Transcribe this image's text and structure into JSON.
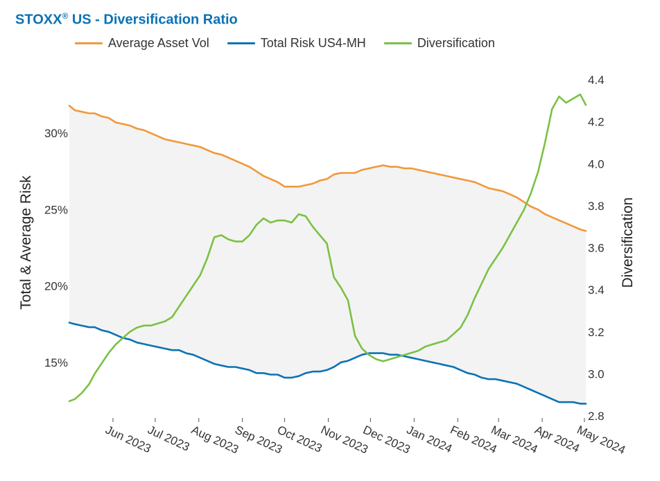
{
  "title": {
    "brand": "STOXX",
    "reg": "®",
    "rest": " US - Diversification Ratio"
  },
  "chart_data": {
    "type": "line",
    "title": "STOXX® US - Diversification Ratio",
    "legend_position": "top",
    "grid": false,
    "shaded_band_between": [
      "Average Asset Vol",
      "Total Risk US4-MH"
    ],
    "band_color": "#f3f3f3",
    "x_axis": {
      "type": "date",
      "range": [
        "2023-05-01",
        "2024-05-02"
      ],
      "ticks": [
        {
          "date": "2023-06-01",
          "label": "Jun 2023"
        },
        {
          "date": "2023-07-01",
          "label": "Jul 2023"
        },
        {
          "date": "2023-08-01",
          "label": "Aug 2023"
        },
        {
          "date": "2023-09-01",
          "label": "Sep 2023"
        },
        {
          "date": "2023-10-01",
          "label": "Oct 2023"
        },
        {
          "date": "2023-11-01",
          "label": "Nov 2023"
        },
        {
          "date": "2023-12-01",
          "label": "Dec 2023"
        },
        {
          "date": "2024-01-01",
          "label": "Jan 2024"
        },
        {
          "date": "2024-02-01",
          "label": "Feb 2024"
        },
        {
          "date": "2024-03-01",
          "label": "Mar 2024"
        },
        {
          "date": "2024-04-01",
          "label": "Apr 2024"
        },
        {
          "date": "2024-05-01",
          "label": "May 2024"
        }
      ]
    },
    "y_left": {
      "label": "Total & Average Risk",
      "range": [
        11.5,
        33.5
      ],
      "ticks": [
        {
          "value": 15,
          "label": "15%"
        },
        {
          "value": 20,
          "label": "20%"
        },
        {
          "value": 25,
          "label": "25%"
        },
        {
          "value": 30,
          "label": "30%"
        }
      ]
    },
    "y_right": {
      "label": "Diversification",
      "range": [
        2.8,
        4.4
      ],
      "ticks": [
        {
          "value": 2.8,
          "label": "2.8"
        },
        {
          "value": 3.0,
          "label": "3.0"
        },
        {
          "value": 3.2,
          "label": "3.2"
        },
        {
          "value": 3.4,
          "label": "3.4"
        },
        {
          "value": 3.6,
          "label": "3.6"
        },
        {
          "value": 3.8,
          "label": "3.8"
        },
        {
          "value": 4.0,
          "label": "4.0"
        },
        {
          "value": 4.2,
          "label": "4.2"
        },
        {
          "value": 4.4,
          "label": "4.4"
        }
      ]
    },
    "series": [
      {
        "name": "Average Asset Vol",
        "axis": "left",
        "color": "#f0993a",
        "points": [
          [
            "2023-05-01",
            31.8
          ],
          [
            "2023-05-05",
            31.5
          ],
          [
            "2023-05-10",
            31.4
          ],
          [
            "2023-05-15",
            31.3
          ],
          [
            "2023-05-19",
            31.3
          ],
          [
            "2023-05-24",
            31.1
          ],
          [
            "2023-05-29",
            31.0
          ],
          [
            "2023-06-03",
            30.7
          ],
          [
            "2023-06-08",
            30.6
          ],
          [
            "2023-06-13",
            30.5
          ],
          [
            "2023-06-18",
            30.3
          ],
          [
            "2023-06-23",
            30.2
          ],
          [
            "2023-06-28",
            30.0
          ],
          [
            "2023-07-03",
            29.8
          ],
          [
            "2023-07-08",
            29.6
          ],
          [
            "2023-07-13",
            29.5
          ],
          [
            "2023-07-18",
            29.4
          ],
          [
            "2023-07-23",
            29.3
          ],
          [
            "2023-07-28",
            29.2
          ],
          [
            "2023-08-02",
            29.1
          ],
          [
            "2023-08-07",
            28.9
          ],
          [
            "2023-08-12",
            28.7
          ],
          [
            "2023-08-17",
            28.6
          ],
          [
            "2023-08-22",
            28.4
          ],
          [
            "2023-08-27",
            28.2
          ],
          [
            "2023-09-01",
            28.0
          ],
          [
            "2023-09-06",
            27.8
          ],
          [
            "2023-09-11",
            27.5
          ],
          [
            "2023-09-16",
            27.2
          ],
          [
            "2023-09-21",
            27.0
          ],
          [
            "2023-09-26",
            26.8
          ],
          [
            "2023-10-01",
            26.5
          ],
          [
            "2023-10-06",
            26.5
          ],
          [
            "2023-10-11",
            26.5
          ],
          [
            "2023-10-16",
            26.6
          ],
          [
            "2023-10-21",
            26.7
          ],
          [
            "2023-10-26",
            26.9
          ],
          [
            "2023-10-31",
            27.0
          ],
          [
            "2023-11-05",
            27.3
          ],
          [
            "2023-11-10",
            27.4
          ],
          [
            "2023-11-15",
            27.4
          ],
          [
            "2023-11-20",
            27.4
          ],
          [
            "2023-11-25",
            27.6
          ],
          [
            "2023-11-30",
            27.7
          ],
          [
            "2023-12-05",
            27.8
          ],
          [
            "2023-12-10",
            27.9
          ],
          [
            "2023-12-15",
            27.8
          ],
          [
            "2023-12-20",
            27.8
          ],
          [
            "2023-12-25",
            27.7
          ],
          [
            "2023-12-30",
            27.7
          ],
          [
            "2024-01-04",
            27.6
          ],
          [
            "2024-01-09",
            27.5
          ],
          [
            "2024-01-14",
            27.4
          ],
          [
            "2024-01-19",
            27.3
          ],
          [
            "2024-01-24",
            27.2
          ],
          [
            "2024-01-29",
            27.1
          ],
          [
            "2024-02-03",
            27.0
          ],
          [
            "2024-02-08",
            26.9
          ],
          [
            "2024-02-13",
            26.8
          ],
          [
            "2024-02-18",
            26.6
          ],
          [
            "2024-02-23",
            26.4
          ],
          [
            "2024-02-28",
            26.3
          ],
          [
            "2024-03-04",
            26.2
          ],
          [
            "2024-03-09",
            26.0
          ],
          [
            "2024-03-14",
            25.8
          ],
          [
            "2024-03-19",
            25.5
          ],
          [
            "2024-03-24",
            25.2
          ],
          [
            "2024-03-29",
            25.0
          ],
          [
            "2024-04-03",
            24.7
          ],
          [
            "2024-04-08",
            24.5
          ],
          [
            "2024-04-13",
            24.3
          ],
          [
            "2024-04-18",
            24.1
          ],
          [
            "2024-04-23",
            23.9
          ],
          [
            "2024-04-28",
            23.7
          ],
          [
            "2024-05-02",
            23.6
          ]
        ]
      },
      {
        "name": "Total Risk US4-MH",
        "axis": "left",
        "color": "#0b72b5",
        "points": [
          [
            "2023-05-01",
            17.6
          ],
          [
            "2023-05-05",
            17.5
          ],
          [
            "2023-05-10",
            17.4
          ],
          [
            "2023-05-15",
            17.3
          ],
          [
            "2023-05-19",
            17.3
          ],
          [
            "2023-05-24",
            17.1
          ],
          [
            "2023-05-29",
            17.0
          ],
          [
            "2023-06-03",
            16.8
          ],
          [
            "2023-06-08",
            16.6
          ],
          [
            "2023-06-13",
            16.5
          ],
          [
            "2023-06-18",
            16.3
          ],
          [
            "2023-06-23",
            16.2
          ],
          [
            "2023-06-28",
            16.1
          ],
          [
            "2023-07-03",
            16.0
          ],
          [
            "2023-07-08",
            15.9
          ],
          [
            "2023-07-13",
            15.8
          ],
          [
            "2023-07-18",
            15.8
          ],
          [
            "2023-07-23",
            15.6
          ],
          [
            "2023-07-28",
            15.5
          ],
          [
            "2023-08-02",
            15.3
          ],
          [
            "2023-08-07",
            15.1
          ],
          [
            "2023-08-12",
            14.9
          ],
          [
            "2023-08-17",
            14.8
          ],
          [
            "2023-08-22",
            14.7
          ],
          [
            "2023-08-27",
            14.7
          ],
          [
            "2023-09-01",
            14.6
          ],
          [
            "2023-09-06",
            14.5
          ],
          [
            "2023-09-11",
            14.3
          ],
          [
            "2023-09-16",
            14.3
          ],
          [
            "2023-09-21",
            14.2
          ],
          [
            "2023-09-26",
            14.2
          ],
          [
            "2023-10-01",
            14.0
          ],
          [
            "2023-10-06",
            14.0
          ],
          [
            "2023-10-11",
            14.1
          ],
          [
            "2023-10-16",
            14.3
          ],
          [
            "2023-10-21",
            14.4
          ],
          [
            "2023-10-26",
            14.4
          ],
          [
            "2023-10-31",
            14.5
          ],
          [
            "2023-11-05",
            14.7
          ],
          [
            "2023-11-10",
            15.0
          ],
          [
            "2023-11-15",
            15.1
          ],
          [
            "2023-11-20",
            15.3
          ],
          [
            "2023-11-25",
            15.5
          ],
          [
            "2023-11-30",
            15.6
          ],
          [
            "2023-12-05",
            15.6
          ],
          [
            "2023-12-10",
            15.6
          ],
          [
            "2023-12-15",
            15.5
          ],
          [
            "2023-12-20",
            15.5
          ],
          [
            "2023-12-25",
            15.4
          ],
          [
            "2023-12-30",
            15.3
          ],
          [
            "2024-01-04",
            15.2
          ],
          [
            "2024-01-09",
            15.1
          ],
          [
            "2024-01-14",
            15.0
          ],
          [
            "2024-01-19",
            14.9
          ],
          [
            "2024-01-24",
            14.8
          ],
          [
            "2024-01-29",
            14.7
          ],
          [
            "2024-02-03",
            14.5
          ],
          [
            "2024-02-08",
            14.3
          ],
          [
            "2024-02-13",
            14.2
          ],
          [
            "2024-02-18",
            14.0
          ],
          [
            "2024-02-23",
            13.9
          ],
          [
            "2024-02-28",
            13.9
          ],
          [
            "2024-03-04",
            13.8
          ],
          [
            "2024-03-09",
            13.7
          ],
          [
            "2024-03-14",
            13.6
          ],
          [
            "2024-03-19",
            13.4
          ],
          [
            "2024-03-24",
            13.2
          ],
          [
            "2024-03-29",
            13.0
          ],
          [
            "2024-04-03",
            12.8
          ],
          [
            "2024-04-08",
            12.6
          ],
          [
            "2024-04-13",
            12.4
          ],
          [
            "2024-04-18",
            12.4
          ],
          [
            "2024-04-23",
            12.4
          ],
          [
            "2024-04-28",
            12.3
          ],
          [
            "2024-05-02",
            12.3
          ]
        ]
      },
      {
        "name": "Diversification",
        "axis": "right",
        "color": "#7ac143",
        "points": [
          [
            "2023-05-01",
            2.87
          ],
          [
            "2023-05-05",
            2.88
          ],
          [
            "2023-05-10",
            2.91
          ],
          [
            "2023-05-15",
            2.95
          ],
          [
            "2023-05-19",
            3.0
          ],
          [
            "2023-05-24",
            3.05
          ],
          [
            "2023-05-29",
            3.1
          ],
          [
            "2023-06-03",
            3.14
          ],
          [
            "2023-06-08",
            3.17
          ],
          [
            "2023-06-13",
            3.2
          ],
          [
            "2023-06-18",
            3.22
          ],
          [
            "2023-06-23",
            3.23
          ],
          [
            "2023-06-28",
            3.23
          ],
          [
            "2023-07-03",
            3.24
          ],
          [
            "2023-07-08",
            3.25
          ],
          [
            "2023-07-13",
            3.27
          ],
          [
            "2023-07-18",
            3.32
          ],
          [
            "2023-07-23",
            3.37
          ],
          [
            "2023-07-28",
            3.42
          ],
          [
            "2023-08-02",
            3.47
          ],
          [
            "2023-08-07",
            3.55
          ],
          [
            "2023-08-12",
            3.65
          ],
          [
            "2023-08-17",
            3.66
          ],
          [
            "2023-08-22",
            3.64
          ],
          [
            "2023-08-27",
            3.63
          ],
          [
            "2023-09-01",
            3.63
          ],
          [
            "2023-09-06",
            3.66
          ],
          [
            "2023-09-11",
            3.71
          ],
          [
            "2023-09-16",
            3.74
          ],
          [
            "2023-09-21",
            3.72
          ],
          [
            "2023-09-26",
            3.73
          ],
          [
            "2023-10-01",
            3.73
          ],
          [
            "2023-10-06",
            3.72
          ],
          [
            "2023-10-11",
            3.76
          ],
          [
            "2023-10-16",
            3.75
          ],
          [
            "2023-10-21",
            3.7
          ],
          [
            "2023-10-26",
            3.66
          ],
          [
            "2023-10-31",
            3.62
          ],
          [
            "2023-11-05",
            3.46
          ],
          [
            "2023-11-10",
            3.41
          ],
          [
            "2023-11-15",
            3.35
          ],
          [
            "2023-11-20",
            3.18
          ],
          [
            "2023-11-25",
            3.12
          ],
          [
            "2023-11-30",
            3.09
          ],
          [
            "2023-12-05",
            3.07
          ],
          [
            "2023-12-10",
            3.06
          ],
          [
            "2023-12-15",
            3.07
          ],
          [
            "2023-12-20",
            3.08
          ],
          [
            "2023-12-25",
            3.09
          ],
          [
            "2023-12-30",
            3.1
          ],
          [
            "2024-01-04",
            3.11
          ],
          [
            "2024-01-09",
            3.13
          ],
          [
            "2024-01-14",
            3.14
          ],
          [
            "2024-01-19",
            3.15
          ],
          [
            "2024-01-24",
            3.16
          ],
          [
            "2024-01-29",
            3.19
          ],
          [
            "2024-02-03",
            3.22
          ],
          [
            "2024-02-08",
            3.28
          ],
          [
            "2024-02-13",
            3.36
          ],
          [
            "2024-02-18",
            3.43
          ],
          [
            "2024-02-23",
            3.5
          ],
          [
            "2024-02-28",
            3.55
          ],
          [
            "2024-03-04",
            3.6
          ],
          [
            "2024-03-09",
            3.66
          ],
          [
            "2024-03-14",
            3.72
          ],
          [
            "2024-03-19",
            3.78
          ],
          [
            "2024-03-24",
            3.86
          ],
          [
            "2024-03-29",
            3.96
          ],
          [
            "2024-04-03",
            4.1
          ],
          [
            "2024-04-08",
            4.26
          ],
          [
            "2024-04-13",
            4.32
          ],
          [
            "2024-04-18",
            4.29
          ],
          [
            "2024-04-23",
            4.31
          ],
          [
            "2024-04-28",
            4.33
          ],
          [
            "2024-05-02",
            4.28
          ]
        ]
      }
    ]
  }
}
